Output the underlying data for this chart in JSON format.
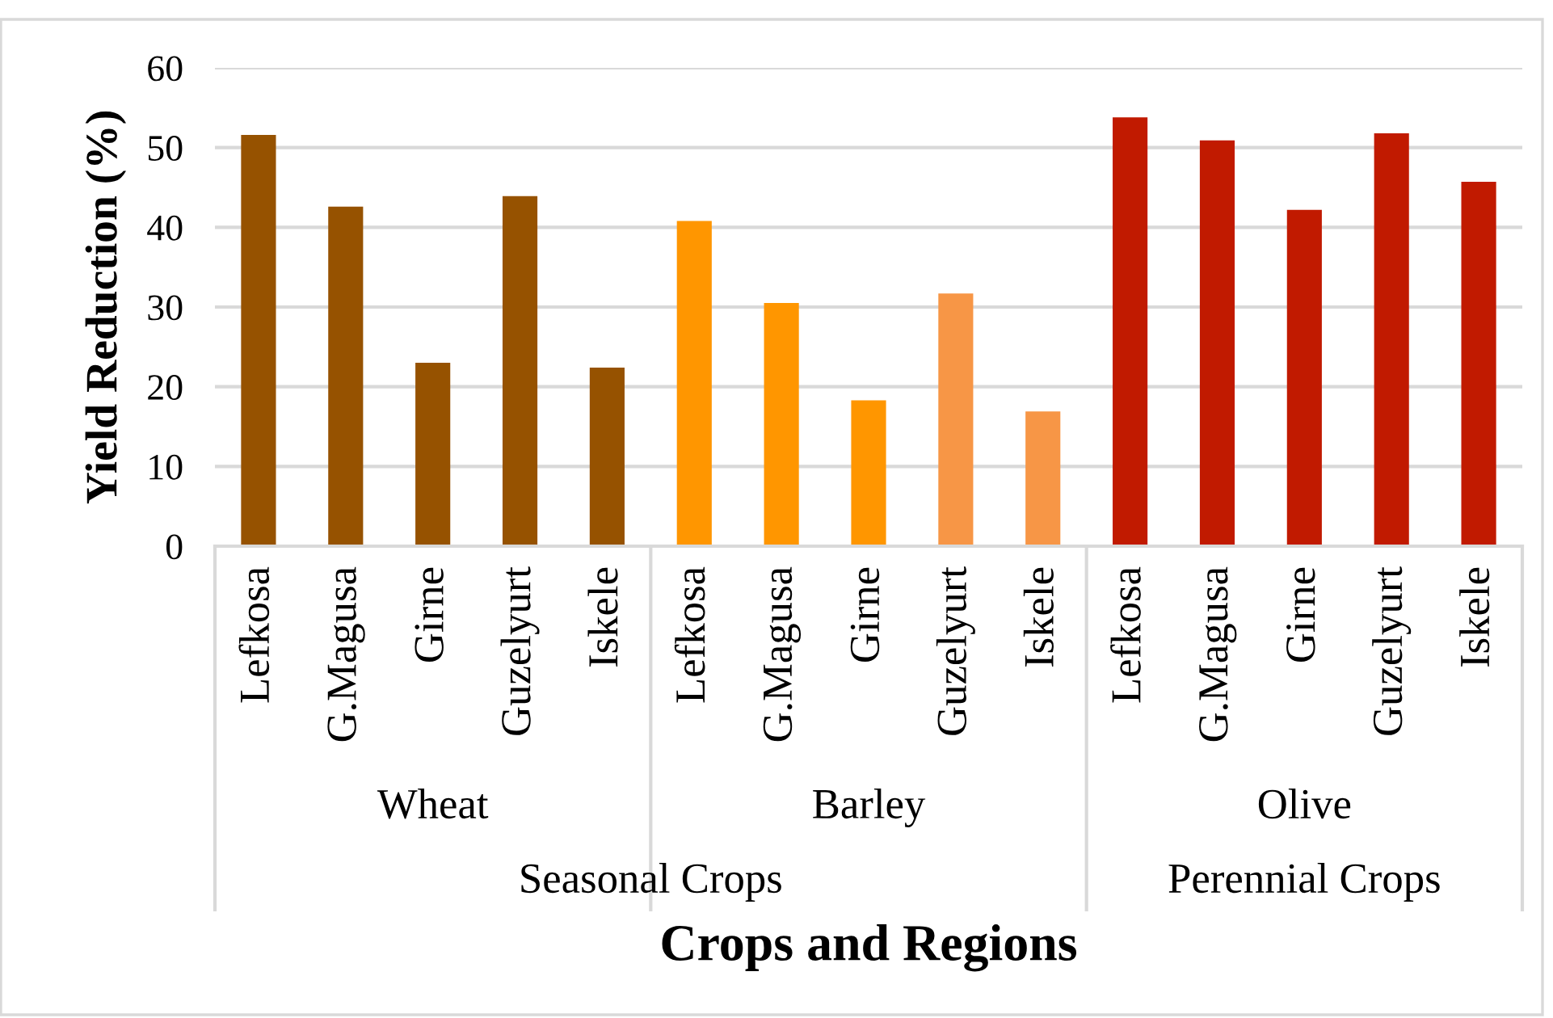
{
  "chart_data": {
    "type": "bar",
    "xlabel": "Crops and Regions",
    "ylabel": "Yield Reduction (%)",
    "categories": [
      "Lefkosa",
      "G.Magusa",
      "Girne",
      "Guzelyurt",
      "Iskele",
      "Lefkosa",
      "G.Magusa",
      "Girne",
      "Guzelyurt",
      "Iskele",
      "Lefkosa",
      "G.Magusa",
      "Girne",
      "Guzelyurt",
      "Iskele"
    ],
    "values": [
      51.6,
      42.6,
      23.0,
      43.9,
      22.4,
      40.8,
      30.5,
      18.3,
      31.7,
      16.9,
      53.8,
      50.9,
      42.2,
      51.8,
      45.7
    ],
    "colors": [
      "#965200",
      "#965200",
      "#965200",
      "#965200",
      "#965200",
      "#ff9600",
      "#ff9600",
      "#ff9600",
      "#f79646",
      "#f79646",
      "#c11a00",
      "#c11a00",
      "#c11a00",
      "#c11a00",
      "#c11a00"
    ],
    "annotations": [
      "Wheat",
      "Barley",
      "Olive",
      "Seasonal Crops",
      "Perennial Crops"
    ],
    "ylim": [
      0,
      60
    ],
    "yticks": [
      0,
      10,
      20,
      30,
      40,
      50,
      60
    ],
    "grid": "y"
  }
}
